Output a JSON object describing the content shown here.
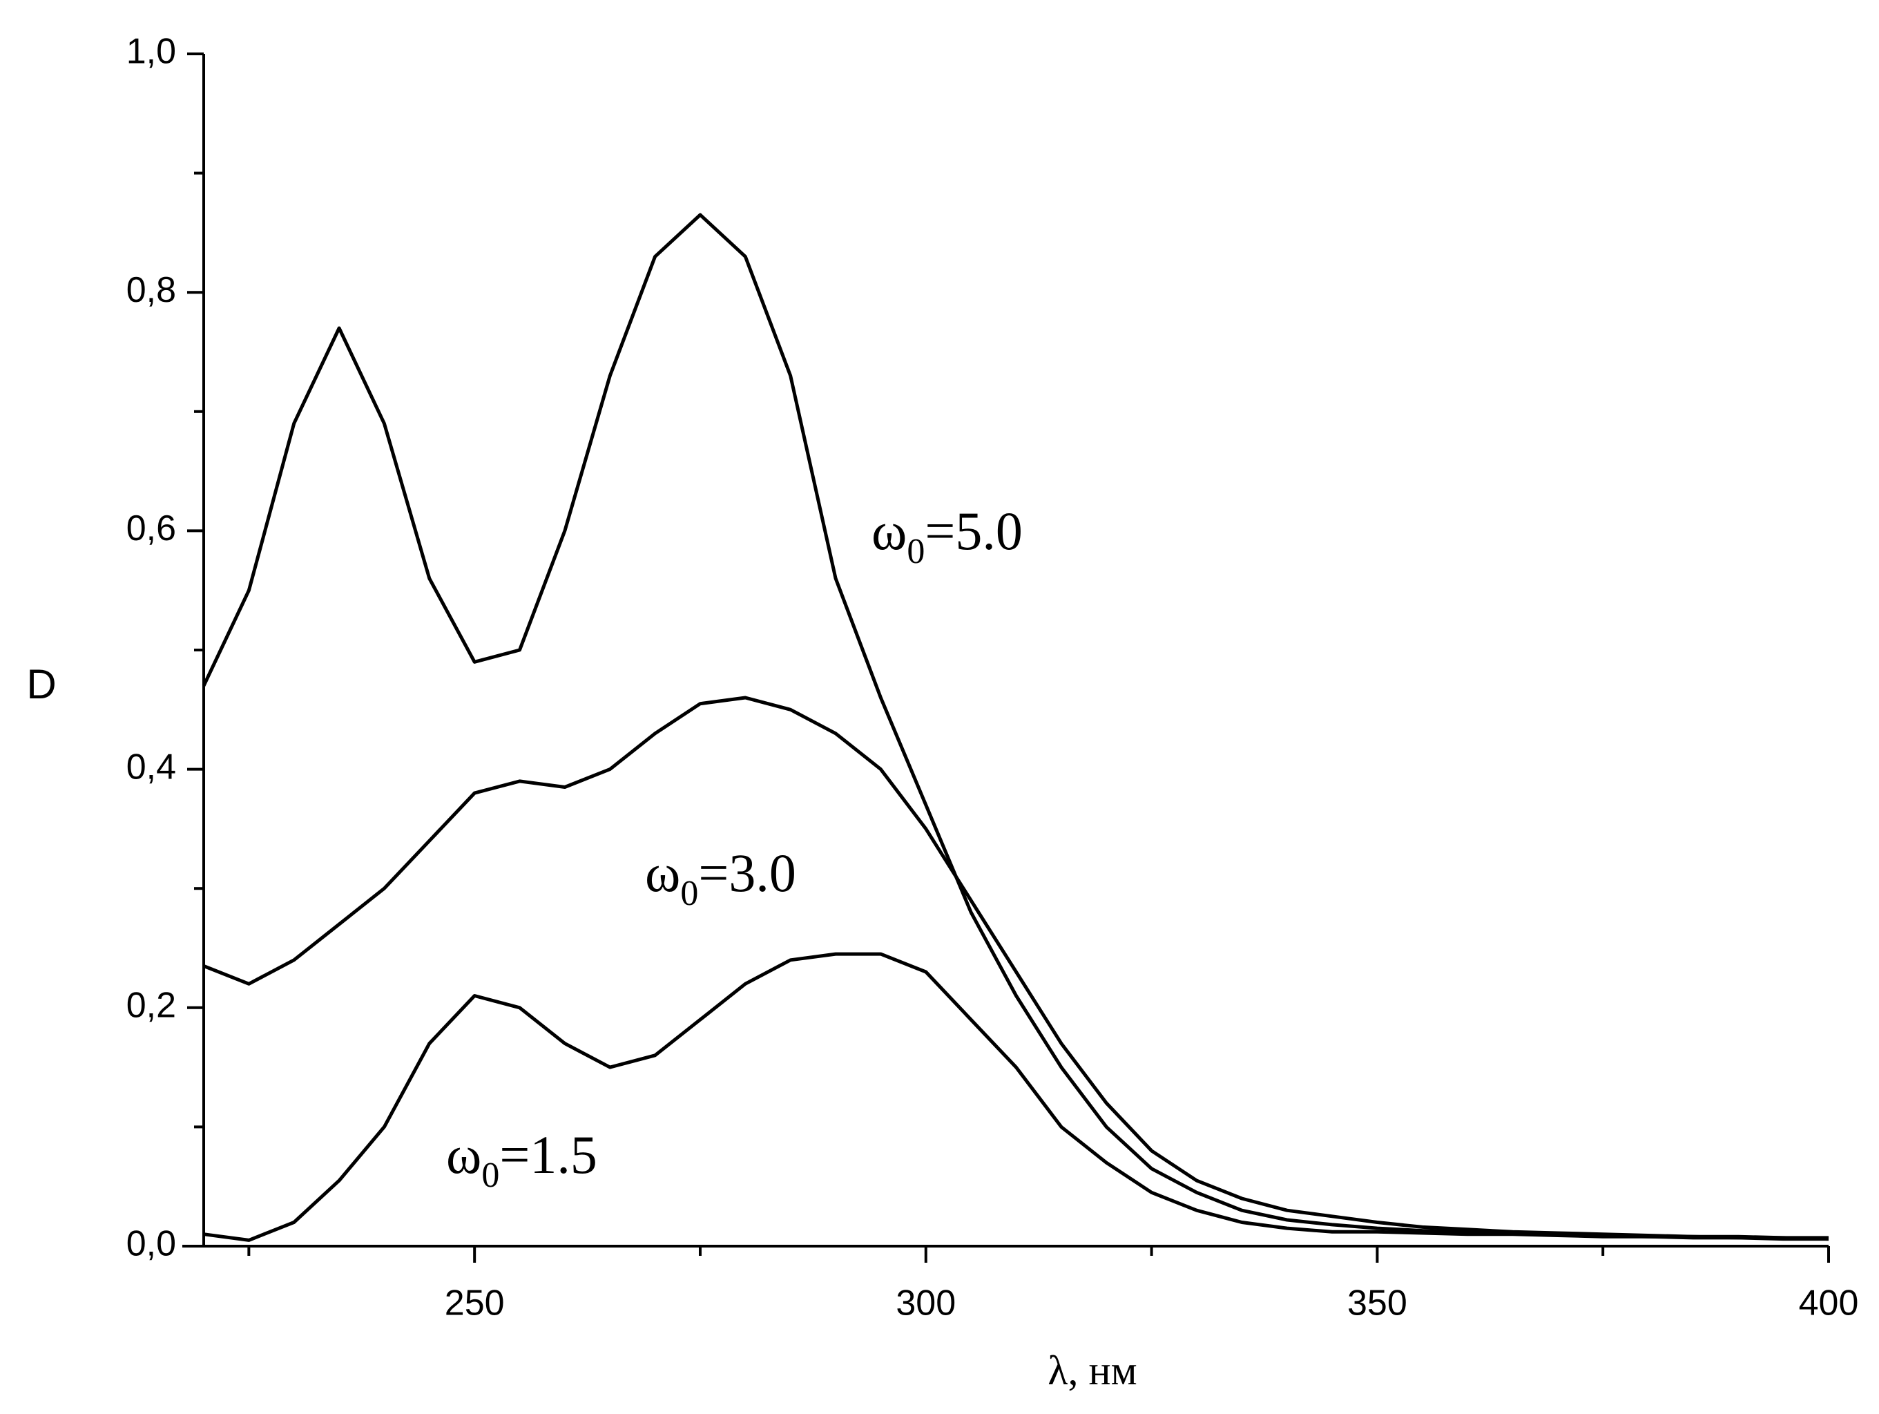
{
  "chart_data": {
    "type": "line",
    "x_label": "λ, нм",
    "y_label": "D",
    "x": [
      220,
      225,
      230,
      235,
      240,
      245,
      250,
      255,
      260,
      265,
      270,
      275,
      280,
      285,
      290,
      295,
      300,
      305,
      310,
      315,
      320,
      325,
      330,
      335,
      340,
      345,
      350,
      355,
      360,
      365,
      370,
      375,
      380,
      385,
      390,
      395,
      400
    ],
    "series": [
      {
        "label": {
          "base": "ω",
          "sub": "0",
          "rest": "=5.0"
        },
        "color": "#000000",
        "values": [
          0.47,
          0.55,
          0.69,
          0.77,
          0.69,
          0.56,
          0.49,
          0.5,
          0.6,
          0.73,
          0.83,
          0.865,
          0.83,
          0.73,
          0.56,
          0.46,
          0.37,
          0.28,
          0.21,
          0.15,
          0.1,
          0.065,
          0.045,
          0.03,
          0.022,
          0.018,
          0.015,
          0.013,
          0.012,
          0.011,
          0.01,
          0.009,
          0.008,
          0.008,
          0.007,
          0.007,
          0.006
        ]
      },
      {
        "label": {
          "base": "ω",
          "sub": "0",
          "rest": "=3.0"
        },
        "color": "#000000",
        "values": [
          0.235,
          0.22,
          0.24,
          0.27,
          0.3,
          0.34,
          0.38,
          0.39,
          0.385,
          0.4,
          0.43,
          0.455,
          0.46,
          0.45,
          0.43,
          0.4,
          0.35,
          0.29,
          0.23,
          0.17,
          0.12,
          0.08,
          0.055,
          0.04,
          0.03,
          0.025,
          0.02,
          0.016,
          0.014,
          0.012,
          0.011,
          0.01,
          0.009,
          0.008,
          0.008,
          0.007,
          0.007
        ]
      },
      {
        "label": {
          "base": "ω",
          "sub": "0",
          "rest": "=1.5"
        },
        "color": "#000000",
        "values": [
          0.01,
          0.005,
          0.02,
          0.055,
          0.1,
          0.17,
          0.21,
          0.2,
          0.17,
          0.15,
          0.16,
          0.19,
          0.22,
          0.24,
          0.245,
          0.245,
          0.23,
          0.19,
          0.15,
          0.1,
          0.07,
          0.045,
          0.03,
          0.02,
          0.015,
          0.012,
          0.012,
          0.011,
          0.01,
          0.01,
          0.009,
          0.008,
          0.008,
          0.007,
          0.007,
          0.006,
          0.006
        ]
      }
    ],
    "xlim": [
      220,
      400
    ],
    "ylim": [
      0,
      1
    ],
    "xticks": [
      250,
      300,
      350,
      400
    ],
    "xminorticks": [
      225,
      275,
      325,
      375
    ],
    "yticks": [
      {
        "value": 0,
        "label": "0,0"
      },
      {
        "value": 0.2,
        "label": "0,2"
      },
      {
        "value": 0.4,
        "label": "0,4"
      },
      {
        "value": 0.6,
        "label": "0,6"
      },
      {
        "value": 0.8,
        "label": "0,8"
      },
      {
        "value": 1,
        "label": "1,0"
      }
    ],
    "yminorticks": [
      0.1,
      0.3,
      0.5,
      0.7,
      0.9
    ],
    "grid": false
  }
}
